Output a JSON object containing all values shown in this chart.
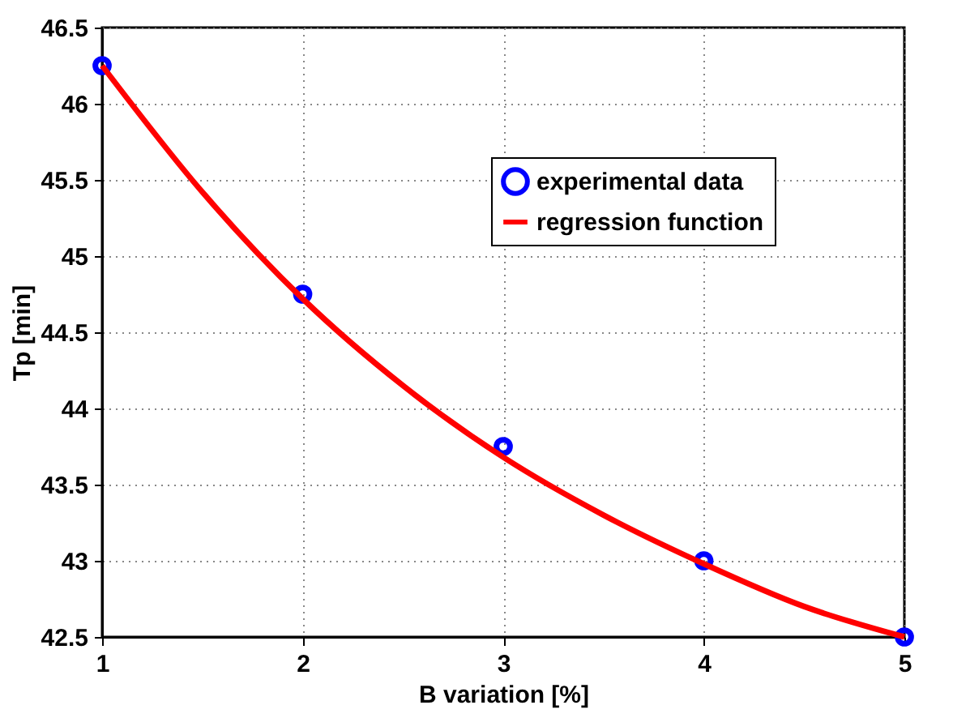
{
  "chart_data": {
    "type": "line",
    "xlabel": "B variation [%]",
    "ylabel": "Tp [min]",
    "xlim": [
      1,
      5
    ],
    "xticks": [
      1,
      2,
      3,
      4,
      5
    ],
    "ylim": [
      42.5,
      46.5
    ],
    "yticks": [
      42.5,
      43,
      43.5,
      44,
      44.5,
      45,
      45.5,
      46,
      46.5
    ],
    "grid": true,
    "legend": "top right",
    "series": [
      {
        "name": "experimental data",
        "type": "scatter",
        "marker": "circle",
        "color": "#0000ff",
        "x": [
          1,
          2,
          3,
          4,
          5
        ],
        "values": [
          46.25,
          44.75,
          43.75,
          43.0,
          42.5
        ]
      },
      {
        "name": "regression function",
        "type": "line",
        "line_style": "solid",
        "color": "#ff0000",
        "x": [
          1,
          1.5,
          2,
          2.5,
          3,
          3.5,
          4,
          4.5,
          5
        ],
        "values": [
          46.25,
          45.42,
          44.72,
          44.15,
          43.68,
          43.3,
          42.98,
          42.7,
          42.5
        ]
      }
    ]
  }
}
